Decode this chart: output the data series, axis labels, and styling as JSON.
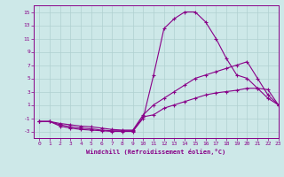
{
  "xlabel": "Windchill (Refroidissement éolien,°C)",
  "background_color": "#cde8e8",
  "grid_color": "#b0d0d0",
  "line_color": "#880088",
  "x": [
    0,
    1,
    2,
    3,
    4,
    5,
    6,
    7,
    8,
    9,
    10,
    11,
    12,
    13,
    14,
    15,
    16,
    17,
    18,
    19,
    20,
    21,
    22,
    23
  ],
  "curve_top": [
    -1.5,
    -1.5,
    -2.2,
    -2.5,
    -2.7,
    -2.8,
    -2.9,
    -3.0,
    -3.0,
    -3.0,
    -1.0,
    5.5,
    12.5,
    14.0,
    15.0,
    15.0,
    13.5,
    11.0,
    8.0,
    5.5,
    5.0,
    3.5,
    2.0,
    1.0
  ],
  "curve_mid": [
    -1.5,
    -1.5,
    -1.8,
    -2.0,
    -2.2,
    -2.3,
    -2.5,
    -2.7,
    -2.8,
    -2.8,
    -0.5,
    1.0,
    2.0,
    3.0,
    4.0,
    5.0,
    5.5,
    6.0,
    6.5,
    7.0,
    7.5,
    5.0,
    2.5,
    1.0
  ],
  "curve_bot": [
    -1.5,
    -1.5,
    -2.0,
    -2.3,
    -2.5,
    -2.6,
    -2.8,
    -2.9,
    -2.9,
    -2.9,
    -0.8,
    -0.5,
    0.5,
    1.0,
    1.5,
    2.0,
    2.5,
    2.8,
    3.0,
    3.2,
    3.5,
    3.5,
    3.3,
    1.0
  ],
  "ylim": [
    -4,
    16
  ],
  "xlim": [
    -0.5,
    23
  ],
  "yticks": [
    -3,
    -1,
    1,
    3,
    5,
    7,
    9,
    11,
    13,
    15
  ],
  "xticks": [
    0,
    1,
    2,
    3,
    4,
    5,
    6,
    7,
    8,
    9,
    10,
    11,
    12,
    13,
    14,
    15,
    16,
    17,
    18,
    19,
    20,
    21,
    22,
    23
  ]
}
